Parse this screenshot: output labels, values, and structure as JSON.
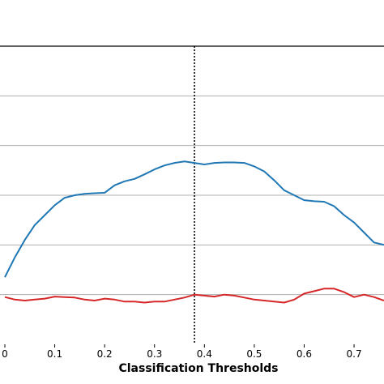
{
  "chart_data": {
    "type": "line",
    "xlabel": "Classification Thresholds",
    "xlim": [
      0.0,
      0.76
    ],
    "ylim": [
      0.0,
      6.0
    ],
    "x_ticks": [
      0.0,
      0.1,
      0.2,
      0.3,
      0.4,
      0.5,
      0.6,
      0.7
    ],
    "x_tick_labels": [
      "0",
      "0.1",
      "0.2",
      "0.3",
      "0.4",
      "0.5",
      "0.6",
      "0.7"
    ],
    "y_gridlines": [
      1,
      2,
      3,
      4,
      5
    ],
    "grid": "horizontal",
    "vline_x": 0.38,
    "colors": {
      "blue_series": "#1f77b4",
      "red_series": "#d62728",
      "grid": "#b0b0b0"
    },
    "series": [
      {
        "color": "#1f77b4",
        "x": [
          0.0,
          0.02,
          0.04,
          0.06,
          0.08,
          0.1,
          0.12,
          0.14,
          0.16,
          0.18,
          0.2,
          0.22,
          0.24,
          0.26,
          0.28,
          0.3,
          0.32,
          0.34,
          0.36,
          0.38,
          0.4,
          0.42,
          0.44,
          0.46,
          0.48,
          0.5,
          0.52,
          0.54,
          0.56,
          0.58,
          0.6,
          0.62,
          0.64,
          0.66,
          0.68,
          0.7,
          0.72,
          0.74,
          0.76
        ],
        "values": [
          1.35,
          1.75,
          2.1,
          2.4,
          2.6,
          2.8,
          2.95,
          3.0,
          3.03,
          3.04,
          3.05,
          3.2,
          3.28,
          3.33,
          3.42,
          3.52,
          3.6,
          3.65,
          3.68,
          3.65,
          3.62,
          3.65,
          3.66,
          3.66,
          3.65,
          3.58,
          3.48,
          3.3,
          3.1,
          3.0,
          2.9,
          2.88,
          2.87,
          2.78,
          2.6,
          2.45,
          2.25,
          2.05,
          2.0
        ]
      },
      {
        "color": "#d62728",
        "x": [
          0.0,
          0.02,
          0.04,
          0.06,
          0.08,
          0.1,
          0.12,
          0.14,
          0.16,
          0.18,
          0.2,
          0.22,
          0.24,
          0.26,
          0.28,
          0.3,
          0.32,
          0.34,
          0.36,
          0.38,
          0.4,
          0.42,
          0.44,
          0.46,
          0.48,
          0.5,
          0.52,
          0.54,
          0.56,
          0.58,
          0.6,
          0.62,
          0.64,
          0.66,
          0.68,
          0.7,
          0.72,
          0.74,
          0.76
        ],
        "values": [
          0.95,
          0.9,
          0.88,
          0.9,
          0.92,
          0.96,
          0.95,
          0.94,
          0.9,
          0.88,
          0.92,
          0.9,
          0.86,
          0.86,
          0.84,
          0.86,
          0.86,
          0.9,
          0.94,
          1.0,
          0.98,
          0.96,
          1.0,
          0.98,
          0.94,
          0.9,
          0.88,
          0.86,
          0.84,
          0.9,
          1.02,
          1.07,
          1.12,
          1.12,
          1.05,
          0.95,
          1.0,
          0.95,
          0.88
        ]
      }
    ]
  }
}
